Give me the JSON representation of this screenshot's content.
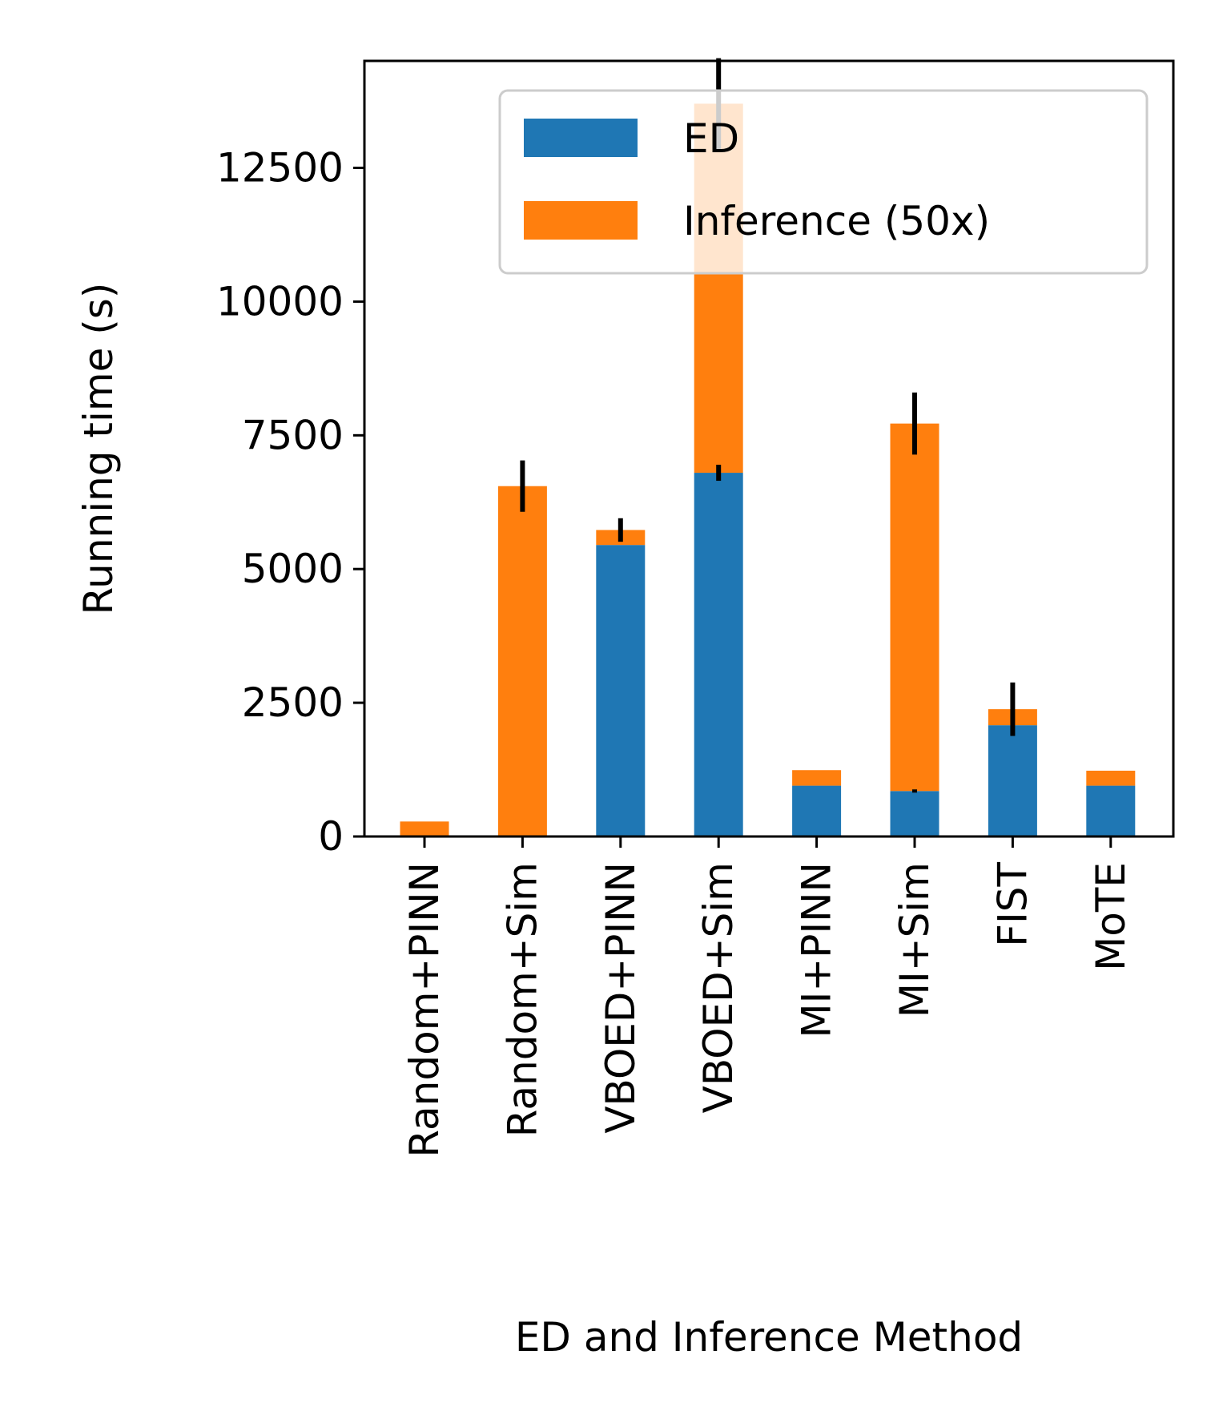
{
  "chart_data": {
    "type": "bar",
    "stacked": true,
    "xlabel": "ED and Inference Method",
    "ylabel": "Running time (s)",
    "ylim": [
      0,
      14500
    ],
    "yticks": [
      0,
      2500,
      5000,
      7500,
      10000,
      12500
    ],
    "categories": [
      "Random+PINN",
      "Random+Sim",
      "VBOED+PINN",
      "VBOED+Sim",
      "MI+PINN",
      "MI+Sim",
      "FIST",
      "MoTE"
    ],
    "series": [
      {
        "name": "ED",
        "color": "#1f77b4",
        "values": [
          0,
          0,
          5450,
          6800,
          950,
          850,
          2080,
          950
        ],
        "errors": [
          0,
          0,
          0,
          150,
          0,
          30,
          0,
          0
        ]
      },
      {
        "name": "Inference (50x)",
        "color": "#ff7f0e",
        "values": [
          280,
          6550,
          280,
          6900,
          290,
          6870,
          300,
          280
        ],
        "errors": [
          0,
          480,
          220,
          850,
          0,
          580,
          500,
          0
        ]
      }
    ],
    "legend": {
      "placement": "top-right",
      "alpha": 0.8
    },
    "grid": false
  }
}
